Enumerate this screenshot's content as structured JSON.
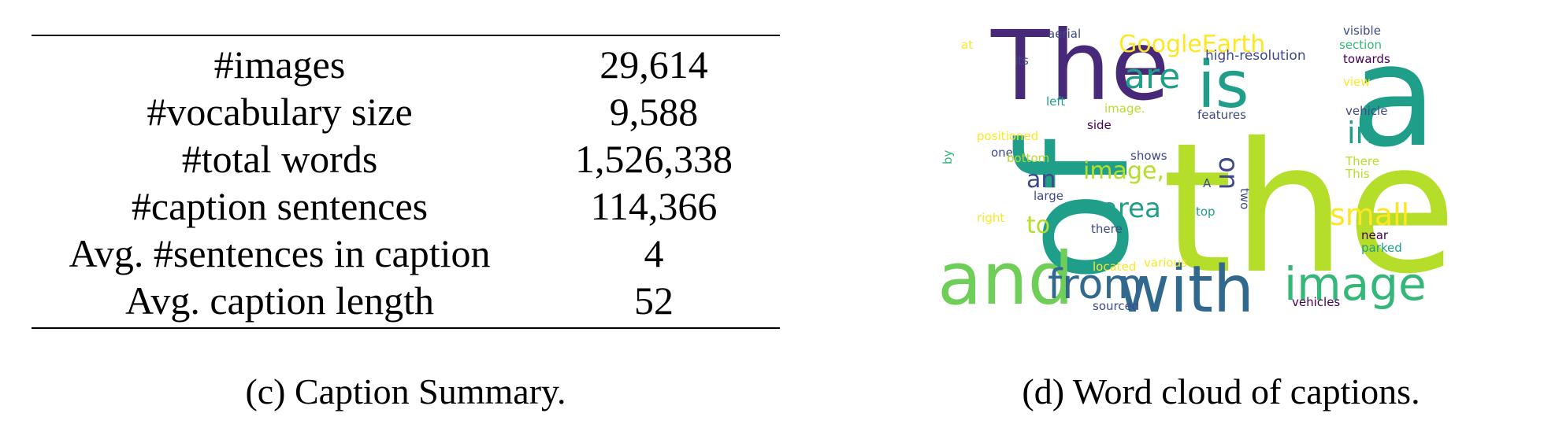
{
  "summary_table": {
    "rows": [
      {
        "label": "#images",
        "value": "29,614"
      },
      {
        "label": "#vocabulary size",
        "value": "9,588"
      },
      {
        "label": "#total words",
        "value": "1,526,338"
      },
      {
        "label": "#caption sentences",
        "value": "114,366"
      },
      {
        "label": "Avg. #sentences in caption",
        "value": "4"
      },
      {
        "label": "Avg. caption length",
        "value": "52"
      }
    ]
  },
  "captions": {
    "left": "(c) Caption Summary.",
    "right": "(d) Word cloud of captions."
  },
  "word_cloud": {
    "colors": {
      "lime": "#b5de2b",
      "teal": "#35b779",
      "seagreen": "#1f9e89",
      "cyan": "#26828e",
      "blue": "#31688e",
      "indigo": "#3e4989",
      "purple": "#482878",
      "darkpurple": "#440154",
      "yellow": "#fde725",
      "lightgreen": "#6ece58"
    },
    "words": [
      {
        "text": "the",
        "color": "lime"
      },
      {
        "text": "a",
        "color": "seagreen"
      },
      {
        "text": "of",
        "color": "seagreen"
      },
      {
        "text": "The",
        "color": "purple"
      },
      {
        "text": "is",
        "color": "seagreen"
      },
      {
        "text": "and",
        "color": "lightgreen"
      },
      {
        "text": "with",
        "color": "blue"
      },
      {
        "text": "from",
        "color": "blue"
      },
      {
        "text": "image",
        "color": "teal"
      },
      {
        "text": "GoogleEarth",
        "color": "yellow"
      },
      {
        "text": "are",
        "color": "seagreen"
      },
      {
        "text": "in",
        "color": "seagreen"
      },
      {
        "text": "small",
        "color": "yellow"
      },
      {
        "text": "image,",
        "color": "lime"
      },
      {
        "text": "area",
        "color": "seagreen"
      },
      {
        "text": "an",
        "color": "indigo"
      },
      {
        "text": "to",
        "color": "lime"
      },
      {
        "text": "on",
        "color": "indigo"
      },
      {
        "text": "high-resolution",
        "color": "indigo"
      },
      {
        "text": "aerial",
        "color": "indigo"
      },
      {
        "text": "at",
        "color": "yellow"
      },
      {
        "text": "its",
        "color": "indigo"
      },
      {
        "text": "left",
        "color": "seagreen"
      },
      {
        "text": "image.",
        "color": "lime"
      },
      {
        "text": "side",
        "color": "darkpurple"
      },
      {
        "text": "features",
        "color": "indigo"
      },
      {
        "text": "positioned",
        "color": "yellow"
      },
      {
        "text": "one",
        "color": "indigo"
      },
      {
        "text": "bottom",
        "color": "lime"
      },
      {
        "text": "shows",
        "color": "indigo"
      },
      {
        "text": "large",
        "color": "indigo"
      },
      {
        "text": "there",
        "color": "indigo"
      },
      {
        "text": "right",
        "color": "yellow"
      },
      {
        "text": "located",
        "color": "yellow"
      },
      {
        "text": "various",
        "color": "yellow"
      },
      {
        "text": "sourced",
        "color": "indigo"
      },
      {
        "text": "by",
        "color": "teal"
      },
      {
        "text": "A",
        "color": "indigo"
      },
      {
        "text": "top",
        "color": "seagreen"
      },
      {
        "text": "two",
        "color": "indigo"
      },
      {
        "text": "visible",
        "color": "indigo"
      },
      {
        "text": "section",
        "color": "teal"
      },
      {
        "text": "towards",
        "color": "darkpurple"
      },
      {
        "text": "view",
        "color": "yellow"
      },
      {
        "text": "vehicle",
        "color": "indigo"
      },
      {
        "text": "There",
        "color": "lime"
      },
      {
        "text": "This",
        "color": "lime"
      },
      {
        "text": "near",
        "color": "darkpurple"
      },
      {
        "text": "parked",
        "color": "seagreen"
      },
      {
        "text": "vehicles",
        "color": "darkpurple"
      }
    ]
  }
}
